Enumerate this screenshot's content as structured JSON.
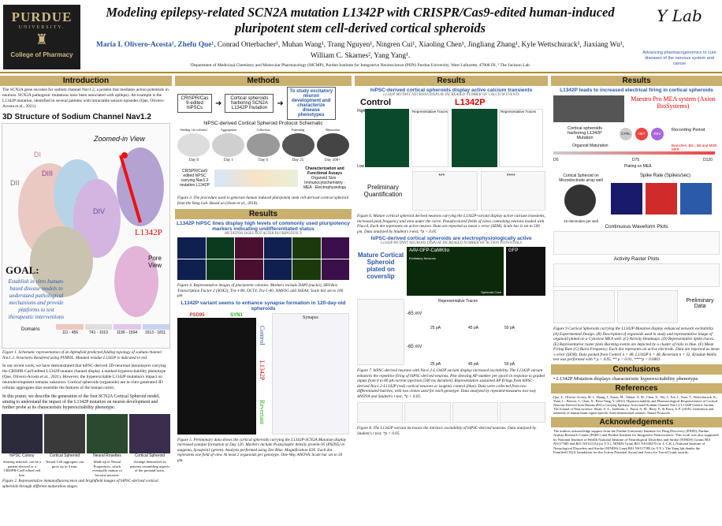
{
  "header": {
    "univ": "PURDUE",
    "univ_sub": "UNIVERSITY.",
    "college": "College of Pharmacy",
    "title": "Modeling epilepsy-related SCN2A mutation L1342P with CRISPR/Cas9-edited human-induced pluripotent stem cell-derived cortical spheroids",
    "authors_first": "Maria I. Olivero-Acosta¹, Zhefu Que¹,",
    "authors_rest": "Conrad Otterbacher¹, Muhan Wang¹, Trang Nguyen¹, Ningren Cui¹, Xiaoling Chen¹, Jingliang Zhang¹, Kyle Wettschurack¹, Jiaxiang Wu¹, William C. Skarnes², Yang Yang¹.",
    "affil": "¹Department of Medicinal Chemistry and Molecular Pharmacology (MCMP), Purdue Institute for Integrative Neuroscience (PIIN) Purdue University, West Lafayette, 47906 IN, ² The Jackson Lab.",
    "lab_logo": "Y Lab",
    "lab_tag": "Advancing pharmacogenomics to cure diseases of the nervous system and cancer"
  },
  "intro": {
    "title": "Introduction",
    "p1": "The SCN2A gene encodes for sodium channel Nav1.2, a protein that mediates action potentials in neurons. SCN2A pathogenic mutations have been associated with epilepsy. An example is the L1342P mutation, identified in several patients with intractable seizure episodes (Que, Olivero-Acosta et al., 2021).",
    "h3": "3D Structure of Sodium Channel Nav1.2",
    "zoomed": "Zoomed-in View",
    "mut": "L1342P",
    "pore": "Pore View",
    "goal_title": "GOAL:",
    "goal": "Establish in vitro human-based disease models to understand pathological mechanisms and provide platforms to test therapeutic interventions",
    "di": "DI",
    "dii": "DII",
    "diii": "DIII",
    "div": "DIV",
    "domains_label": "Domains",
    "domain_names": [
      "DI",
      "DII",
      "DIII",
      "DIV"
    ],
    "domain_ranges": [
      "111 - 456",
      "741 - 1013",
      "1190 - 1504",
      "1513 - 1811"
    ],
    "fig1": "Figure 1. Schematic representation of an Alphafold predicted folding topology of sodium channel Nav1.2. Structures Rendered using PYMOL. Mutated residue L1342P is indicated in red.",
    "p2": "In our recent work, we have demonstrated that hiPSC-derived 2D-neuronal monolayers carrying the CRISPR-Cas9-edited L1342P-mutant channel display a marked hyperexcitability phenotype (Que, Olivero-Acosta et al., 2021). However, the hyperexcitable L1342P mutation's impact on neurodevelopment remains unknown. Cortical spheroids (organoids) are in-vitro generated 3D cellular aggregates that resemble the features of the human cortex.",
    "p3": "In this poster, we describe the generation of the first SCN2A Cortical Spheroid model, aiming to understand the impact of the L1342P mutation on neuron development and further probe at its characteristic hyperexcitability phenotype.",
    "stages": [
      "hiPSC Colony",
      "Cortical Spheroid",
      "Neural Rosettes",
      "Cortical Spheroid"
    ],
    "stage_desc": [
      "Starting material, can be a patient-derived or a CRISPR-Cas9 edited cell line.",
      "Neural Cell aggregate can grow up to 4 mm.",
      "Made up of Neural Progenitors, which eventually mature to become neurons.",
      "Arrange themselves in patterns resembling aspects of the prenatal brain."
    ],
    "fig2": "Figure 2. Representative immunofluorescence and brightfield images of hiPSC-derived cortical spheroids through different maturation stages."
  },
  "methods": {
    "title": "Methods",
    "flow": [
      "CRISPR/Cas 9-edited hiPSCs",
      "Cortical spheroids harboring SCN2A L1342P mutation",
      "To study excitatory neuron development and characterize disease phenotypes"
    ],
    "schematic_title": "hiPSC-derived Cortical Spheroid Protocol Schematic",
    "stages": [
      "Seeding 'clo-colonies'",
      "Aggregation",
      "Collection",
      "Patterning",
      "Maturation"
    ],
    "days": [
      "Day 0",
      "Day 1",
      "Day 6",
      "Day 25",
      "Day 100+"
    ],
    "bf": "Brightfield",
    "left_box": "CRISPR/Cas9 edited hiPSC carrying Nav1.2 mutation L1342P",
    "right_box": "Characterization and Functional Assays",
    "right_items": "Organoid Size · Immunocytochemistry · MEA · Electrophysiology",
    "fig3": "Figure 3. The procedure used to generate human induced pluripotent stem cell-derived cortical spheroid from the Yang Lab. Based on (Sloan et al., 2018)."
  },
  "results_mid": {
    "title": "Results",
    "sub1": "L1342P hiPSC lines display high levels of commonly used pluripotency markers indicating undifferentiated status",
    "sub1b": "MUTATION DOES NOT ALTER PLURIPOTENCY",
    "fig4": "Figure 4. Representative images of pluripotent colonies. Markers include DAPI (nuclei), SRY-Box Transcription Factor 2 (SOX2), Tra-1-80, OCT4, Tra-1-60, NANOG and SSEA4. Scale bar set to 100 μm.",
    "sub2": "L1342P variant seems to enhance synapse formation in 120-day-old spheroids",
    "synapse": "Synapse",
    "psd95": "PSD95",
    "syn1": "SYN1",
    "control": "Control",
    "l1342p": "L1342P",
    "revertant": "Revertant",
    "fig5": "Figure 5. Preliminary data shows the cortical spheroids carrying the L1342P-SCN2A Mutation display increased synapse formation at Day 120. Markers include Postsynaptic density protein-95 (PSD95) in magenta, Synapsin1 (green). Analysis performed using Zen Blue. Magnification 63X. Each dot represents one field of view. At least 2 organoids per genotype. One-Way ANOVA. Scale bar set to 50 μm."
  },
  "results_r1": {
    "title": "Results",
    "sub1": "hiPSC-derived cortical spheroids display active calcium transients",
    "sub1b": "L1342P MUTANT NEURONS DISPLAY INCREASED NUMBER OF CALCIUM EVENTS",
    "ctrl": "Control",
    "mut": "L1342P",
    "rep": "Representative Traces",
    "high": "High",
    "low": "Low",
    "prelim": "Preliminary Quantification",
    "sig1": "***",
    "sig2": "****",
    "fig6": "Figure 6. Mature cortical spheroid derived neurons carrying the L1342P-variant display active calcium transients, increased peak frequency and area under the curve. Pseudocolored fields of views containing neurons loaded with Fluo-4. Each dot represents an active neuron. Data are reported as mean ± error (SEM). Scale bar is set to 500 μm. Data analyzed by Student's t-test; *p < 0.05.",
    "sub2": "hiPSC-derived cortical spheroids are electrophysiologically active",
    "sub2b": "L1342P MUTANT NEURONS DISPLAY INCREASED NUMBER OF ACTION POTENTIALS",
    "mature": "Mature Cortical Spheroid plated on coverslip",
    "aav": "AAV-GFP-CaMKIIα",
    "gfp": "GFP",
    "exc": "Excitatory Neurons",
    "sph": "Spheroid Core",
    "rep2": "Representative Traces",
    "mv": [
      "-65 mV",
      "-65 mV"
    ],
    "pa": [
      "25 pA",
      "45 pA",
      "50 pA",
      "25 pA",
      "45 pA",
      "50 pA"
    ],
    "fig7": "Figure 7. hiPSC-derived neurons with Nav1.2-L1342P variant display increased excitability. The L1342P variant enhances the repetitive firing of hiPSC-derived neurons. Plot showing AP number per epoch in response to graded inputs from 0 to 80 pA current injection (500 ms duration). Representative sustained AP firings from hiPSC-derived Nav1.2-L1342P (red) cortical neurons or isogenic control (blue). Data were collected from two differentiated batches, with two clones used for each genotype. Data analyzed by repeated-measures two-way ANOVA and Student's t test; *p < 0.05.",
    "fig8": "Figure 8. The L1342P variant increases the intrinsic excitability of hiPSC-derived neurons. Data analyzed by Student's t test; *p < 0.05."
  },
  "results_r2": {
    "title": "Results",
    "sub1": "L1342P leads to increased electrical firing in cortical spheroids",
    "mea_title": "Maestro Pro MEA system (Axion BioSystems)",
    "harbor": "Cortical spheroids harboring L1342P Mutation",
    "ctrl": "CTRL",
    "het": "HET",
    "rev": "REV",
    "rec": "Recording Period",
    "d0": "D0",
    "d75": "D75",
    "d120": "D120",
    "org": "Organoid Maturation",
    "plating": "Plating on MEA",
    "bursts": "Branches, B0=, B6 and MSE, MFR",
    "b_label": "Cortical Spheroid on Microelectrode array well",
    "c_label": "Spike Rate (Spikes/sec)",
    "cw_label": "Continuous Waveform Plots",
    "raster": "Activity Raster Plots",
    "t1": "Time (Sec)",
    "prelim": "Preliminary Data",
    "e16": "16 electrodes per well",
    "fig9": "Figure 9 Cortical Spheroids carrying the L1342P Mutation display enhanced network excitability. (A) Experimental Design. (B) Description of organoids used in study and representative image of organoid plated on a Cytoview MEA well. (C) Activity Heatmaps. (D) Representative Spike traces. (E) Representative raster plots Bursting events are depicted by a cluster of ticks in blue. (F) Mean Firing Rate (G) Burst Frequency. Each dot represents an active electrode. Data are reported as mean ± error (SEM). Data pooled from Control n = 48, L1342P n = 48, Revertant n = 32. Kruskal-Wallis test was performed with * p < 0.05, ** p < 0.01, ****p < 0.0001",
    "concl_title": "Conclusions",
    "concl": "L1342P Mutation displays characteristic hyperexcitability phenotype.",
    "ref_title": "References",
    "refs": "Que, Z., Olivero-Acosta, M. I., Zhang, J., Eaton, M., Tukker, A. M., Chen, X., Wu, J., Xie, J., Xiao, T., Wettschurack, K., Yuan, L., Brewer, J., Chen, N., Reza-Yang, Y. (2021). Hyperexcitability and Pharmacological Responsiveness of Cortical Neurons Derived from Human iPSCs Carrying Epilepsy-Associated Sodium Channel Nav1.2-L1342P Genetic Variant. The Journal of Neuroscience. Sloan, S. A., Andersen, J., Pasca, A. M., Birey, F., & Pasca, S. P. (2018). Generation and assembly of human brain region-specific three-dimensional cultures. Nature Protocols.",
    "ack_title": "Acknowledgements",
    "ack": "The authors acknowledge support from the Purdue University Institute for Drug Discovery (PIDD), Purdue Autism Research Center (PARC) and Purdue Institute for Integrative Neuroscience. This work was also supported by National Institute of Health National Institute of Neurological Disorders and Stroke (NINDS) Grants R01 NS117585 and R01 NS123154 (to Y.Y.), NINDS Grant R01 NS108270 (to J.-C.K.), National Institute of Neurological Disorders and Stroke (NINDS) Grant R01 NS117585 (to Y.Y.). The Yang lab thanks the FamilieSCN2A foundation for the Action Potential Award and Aiora for Travel Grant awards."
  }
}
